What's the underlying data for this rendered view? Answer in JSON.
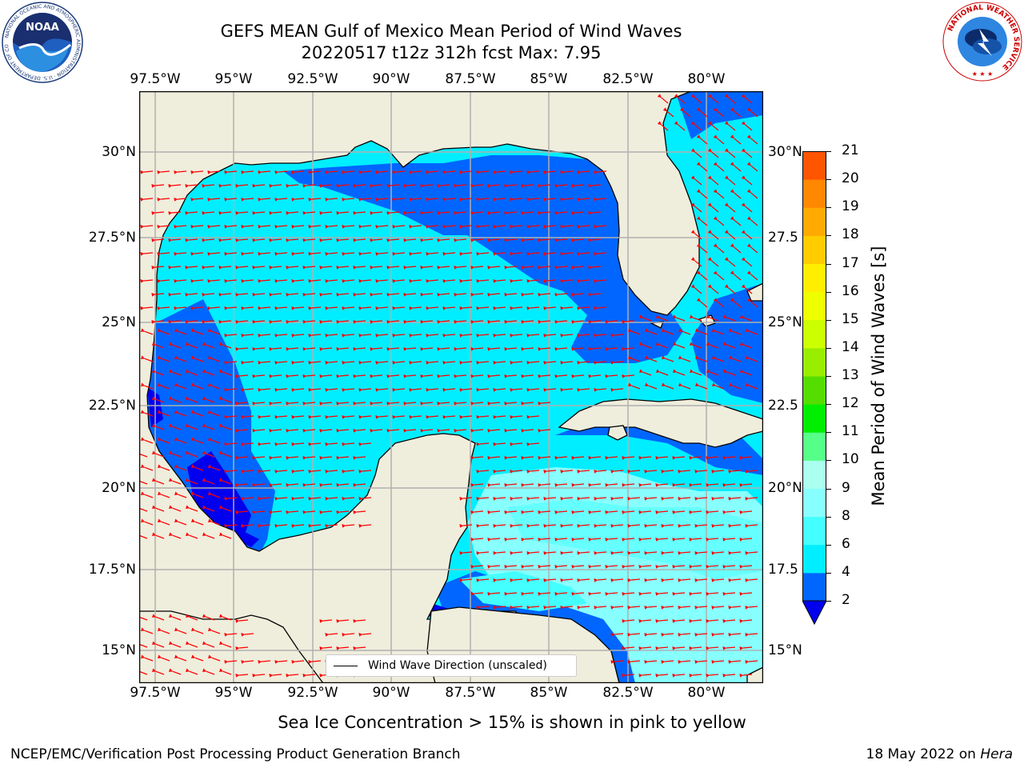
{
  "title": {
    "line1": "GEFS MEAN Gulf of Mexico Mean Period of Wind Waves",
    "line2": "20220517 t12z 312h fcst   Max: 7.95"
  },
  "logos": {
    "left": "noaa-logo",
    "right": "nws-logo",
    "left_ring_text": "NATIONAL OCEANIC AND ATMOSPHERIC ADMINISTRATION · U.S. DEPARTMENT OF COMMERCE",
    "left_center_text": "NOAA",
    "right_ring_text": "NATIONAL WEATHER SERVICE"
  },
  "lon_labels": [
    "97.5°W",
    "95°W",
    "92.5°W",
    "90°W",
    "87.5°W",
    "85°W",
    "82.5°W",
    "80°W"
  ],
  "lat_labels_left": [
    "30°N",
    "27.5°N",
    "25°N",
    "22.5°N",
    "20°N",
    "17.5°N",
    "15°N"
  ],
  "lat_labels_right": [
    "30°N",
    "27.5",
    "25°N",
    "22.5",
    "20°N",
    "17.5",
    "15°N"
  ],
  "legend": {
    "label": "Wind Wave Direction (unscaled)"
  },
  "colorbar": {
    "label": "Mean Period of Wind Waves [s]",
    "ticks": [
      "2",
      "4",
      "6",
      "8",
      "9",
      "10",
      "11",
      "12",
      "13",
      "14",
      "15",
      "16",
      "17",
      "18",
      "19",
      "20",
      "21"
    ],
    "colors": [
      "#0066ff",
      "#00eeff",
      "#44ffff",
      "#88ffff",
      "#aaffee",
      "#55ff88",
      "#00ee00",
      "#55dd00",
      "#99ee00",
      "#ccff00",
      "#eeff00",
      "#ffee00",
      "#ffcc00",
      "#ffaa00",
      "#ff8800",
      "#ff5500",
      "#ff2200",
      "#ff0000"
    ],
    "under_color": "#0000ee"
  },
  "colors": {
    "land": "#efeddc",
    "arrow": "#ff0000",
    "grid": "#b0b0b0",
    "coast": "#000000"
  },
  "sea_ice_note": "Sea Ice Concentration > 15% is shown in pink to yellow",
  "footer": {
    "left": "NCEP/EMC/Verification Post Processing Product Generation Branch",
    "right_prefix": "18 May 2022 on ",
    "right_host": "Hera"
  }
}
